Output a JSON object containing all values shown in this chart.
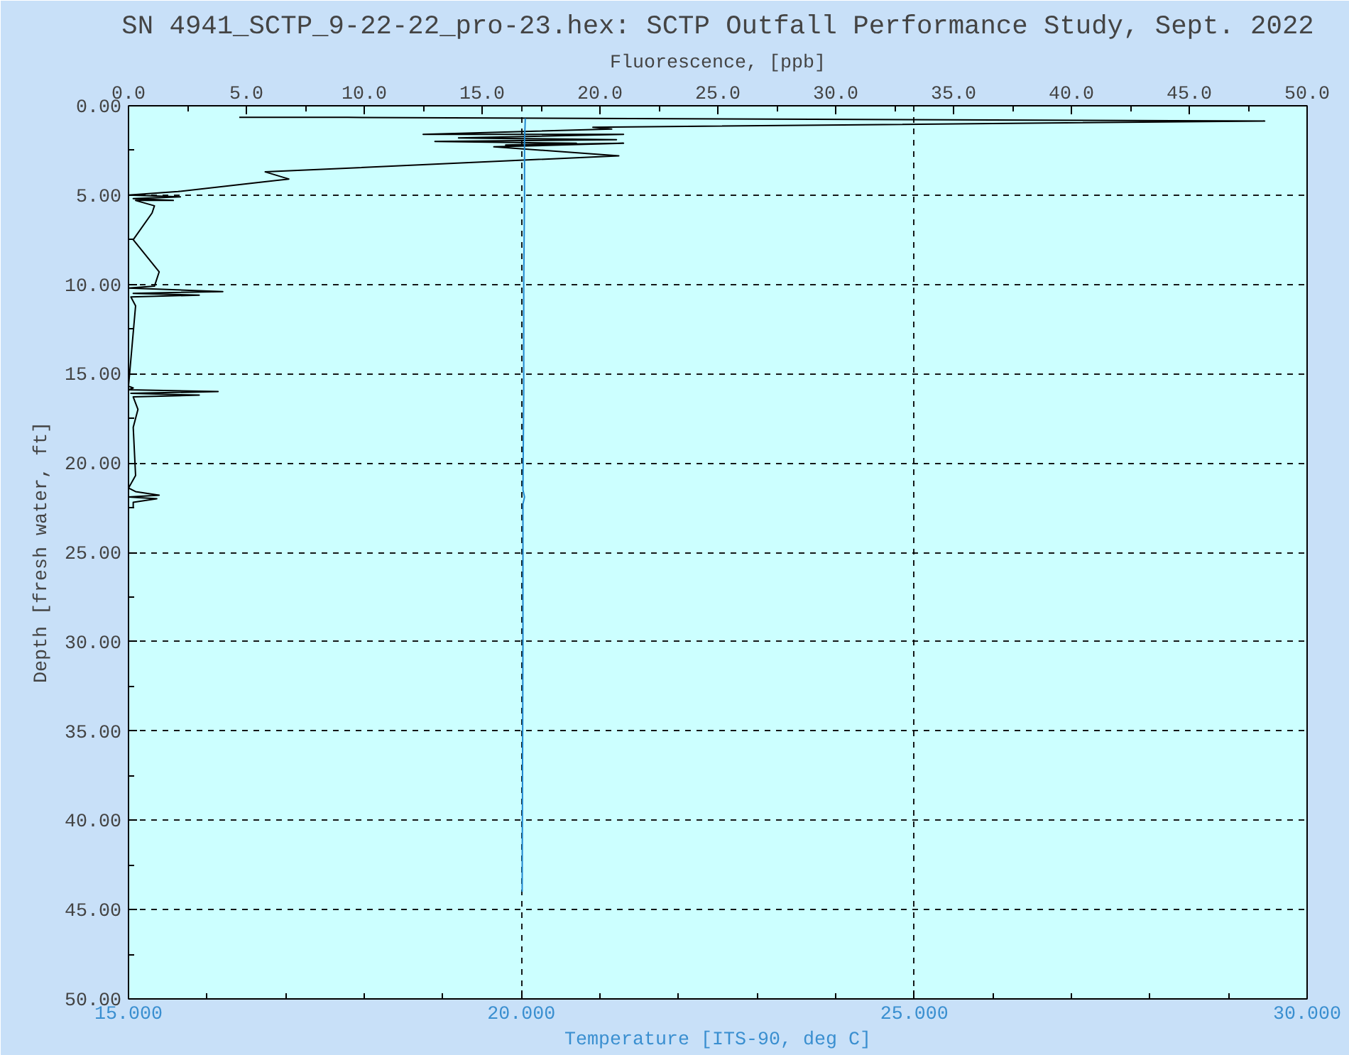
{
  "chart_data": {
    "type": "line",
    "title": "SN 4941_SCTP_9-22-22_pro-23.hex: SCTP Outfall Performance Study, Sept. 2022",
    "xlabel": "Temperature [ITS-90, deg C]",
    "x2label": "Fluorescence, [ppb]",
    "ylabel": "Depth [fresh water, ft]",
    "xlim": [
      15,
      30
    ],
    "xticks": [
      {
        "value": 15,
        "label": "15.000"
      },
      {
        "value": 20,
        "label": "20.000"
      },
      {
        "value": 25,
        "label": "25.000"
      },
      {
        "value": 30,
        "label": "30.000"
      }
    ],
    "x2lim": [
      0,
      50
    ],
    "x2ticks": [
      {
        "value": 0,
        "label": "0.0"
      },
      {
        "value": 5,
        "label": "5.0"
      },
      {
        "value": 10,
        "label": "10.0"
      },
      {
        "value": 15,
        "label": "15.0"
      },
      {
        "value": 20,
        "label": "20.0"
      },
      {
        "value": 25,
        "label": "25.0"
      },
      {
        "value": 30,
        "label": "30.0"
      },
      {
        "value": 35,
        "label": "35.0"
      },
      {
        "value": 40,
        "label": "40.0"
      },
      {
        "value": 45,
        "label": "45.0"
      },
      {
        "value": 50,
        "label": "50.0"
      }
    ],
    "ylim": [
      50,
      0
    ],
    "yticks": [
      {
        "value": 0,
        "label": "0.00"
      },
      {
        "value": 5,
        "label": "5.00"
      },
      {
        "value": 10,
        "label": "10.00"
      },
      {
        "value": 15,
        "label": "15.00"
      },
      {
        "value": 20,
        "label": "20.00"
      },
      {
        "value": 25,
        "label": "25.00"
      },
      {
        "value": 30,
        "label": "30.00"
      },
      {
        "value": 35,
        "label": "35.00"
      },
      {
        "value": 40,
        "label": "40.00"
      },
      {
        "value": 45,
        "label": "45.00"
      },
      {
        "value": 50,
        "label": "50.00"
      }
    ],
    "grid": true,
    "line_style": "solid",
    "marker": "none",
    "series": [
      {
        "color": "#000000",
        "axis": "x2",
        "x": [
          4.7,
          9.3,
          48.2,
          19.7,
          20.5,
          12.5,
          21.0,
          14.0,
          20.7,
          13.0,
          19.0,
          16.0,
          21.0,
          15.5,
          20.8,
          5.8,
          6.8,
          2.1,
          0.0,
          2.2,
          0.2,
          1.9,
          0.3,
          1.1,
          1.0,
          0.2,
          1.3,
          1.1,
          0.0,
          4.0,
          0.2,
          3.0,
          0.1,
          0.3,
          0.0,
          0.2,
          0.0,
          3.8,
          0.1,
          3.0,
          0.2,
          0.4,
          0.2,
          0.3,
          0.0,
          0.3,
          1.3,
          0.0,
          1.2,
          0.2,
          0.2
        ],
        "values": [
          0.65,
          0.65,
          0.85,
          1.2,
          1.3,
          1.6,
          1.6,
          1.8,
          1.9,
          2.0,
          2.1,
          2.2,
          2.1,
          2.3,
          2.8,
          3.7,
          4.1,
          4.8,
          5.0,
          5.1,
          5.2,
          5.3,
          5.3,
          5.6,
          6.0,
          7.5,
          9.3,
          10.1,
          10.2,
          10.4,
          10.5,
          10.6,
          10.7,
          11.2,
          15.7,
          15.8,
          15.9,
          16.0,
          16.1,
          16.2,
          16.3,
          17.0,
          18.0,
          20.7,
          21.4,
          21.6,
          21.8,
          21.9,
          22.0,
          22.2,
          22.5
        ]
      },
      {
        "color": "#1e88d0",
        "x": [
          20.05,
          20.04,
          20.04,
          20.03,
          20.03,
          20.02,
          20.04,
          20.02,
          20.02,
          20.01
        ],
        "values": [
          0.7,
          2.0,
          5.0,
          10.0,
          16.0,
          21.5,
          21.9,
          22.3,
          30.0,
          44.0
        ]
      }
    ]
  }
}
